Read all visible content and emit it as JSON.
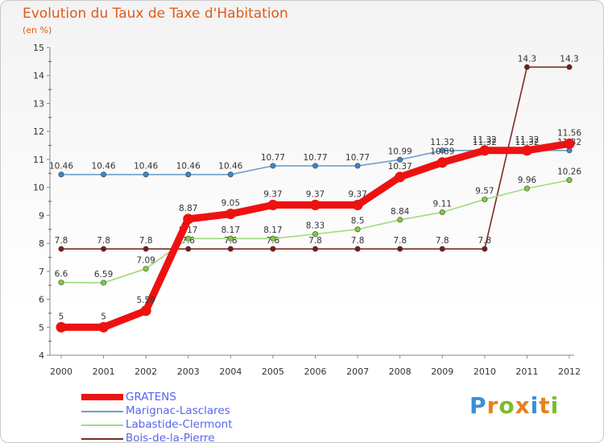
{
  "title": "Evolution du Taux de Taxe d'Habitation",
  "subtitle": "(en %)",
  "brand": {
    "text": "Proxiti",
    "colors": [
      "#3a8fd8",
      "#e8821c",
      "#7dbb2a",
      "#e8821c",
      "#3a8fd8",
      "#e8821c",
      "#7dbb2a"
    ]
  },
  "chart_data": {
    "type": "line",
    "x": [
      "2000",
      "2001",
      "2002",
      "2003",
      "2004",
      "2005",
      "2006",
      "2007",
      "2008",
      "2009",
      "2010",
      "2011",
      "2012"
    ],
    "ylim": [
      4,
      15
    ],
    "yticks": [
      "4",
      "5",
      "6",
      "7",
      "8",
      "9",
      "10",
      "11",
      "12",
      "13",
      "14",
      "15"
    ],
    "grid": false,
    "legend": "bottom-left",
    "series": [
      {
        "name": "Bois-de-la-Pierre",
        "color": "#7a2a2a",
        "marker": "#7a1a1a",
        "values": [
          7.8,
          7.8,
          7.8,
          7.8,
          7.8,
          7.8,
          7.8,
          7.8,
          7.8,
          7.8,
          7.8,
          14.3,
          14.3
        ],
        "labels": [
          "7.8",
          "7.8",
          "7.8",
          "7.8",
          "7.8",
          "7.8",
          "7.8",
          "7.8",
          "7.8",
          "7.8",
          "7.8",
          "14.3",
          "14.3"
        ]
      },
      {
        "name": "Labastide-Clermont",
        "color": "#9fdc7a",
        "marker": "#7fcc3a",
        "values": [
          6.6,
          6.59,
          7.09,
          8.17,
          8.17,
          8.17,
          8.33,
          8.5,
          8.84,
          9.11,
          9.57,
          9.96,
          10.26
        ],
        "labels": [
          "6.6",
          "6.59",
          "7.09",
          "8.17",
          "8.17",
          "8.17",
          "8.33",
          "8.5",
          "8.84",
          "9.11",
          "9.57",
          "9.96",
          "10.26"
        ]
      },
      {
        "name": "Marignac-Lasclares",
        "color": "#6a9fd0",
        "marker": "#3a86cc",
        "values": [
          10.46,
          10.46,
          10.46,
          10.46,
          10.46,
          10.77,
          10.77,
          10.77,
          10.99,
          11.32,
          11.32,
          11.32,
          11.32
        ],
        "labels": [
          "10.46",
          "10.46",
          "10.46",
          "10.46",
          "10.46",
          "10.77",
          "10.77",
          "10.77",
          "10.99",
          "11.32",
          "11.32",
          "11.32",
          "11.32"
        ]
      },
      {
        "name": "GRATENS",
        "color": "#ee1111",
        "marker": "#ee1111",
        "values": [
          5,
          5,
          5.59,
          8.87,
          9.05,
          9.37,
          9.37,
          9.37,
          10.37,
          10.89,
          11.32,
          11.32,
          11.56
        ],
        "labels": [
          "5",
          "5",
          "5.59",
          "8.87",
          "9.05",
          "9.37",
          "9.37",
          "9.37",
          "10.37",
          "10.89",
          "11.32",
          "11.32",
          "11.56"
        ]
      }
    ],
    "legend_entries": [
      {
        "name": "GRATENS",
        "color": "#ee1111"
      },
      {
        "name": "Marignac-Lasclares",
        "color": "#6a9fd0"
      },
      {
        "name": "Labastide-Clermont",
        "color": "#9fdc7a"
      },
      {
        "name": "Bois-de-la-Pierre",
        "color": "#7a2a2a"
      }
    ]
  }
}
